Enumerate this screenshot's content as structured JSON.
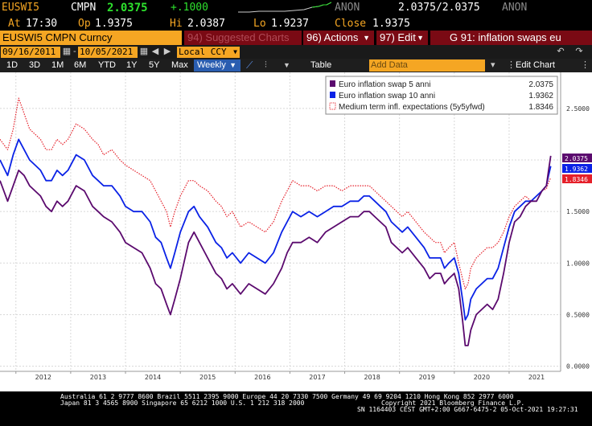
{
  "header": {
    "ticker": "EUSWI5",
    "source": "CMPN",
    "last": "2.0375",
    "change": "+.1000",
    "account": "ANON",
    "bid_ask": "2.0375/2.0375",
    "account2": "ANON",
    "at_label": "At",
    "at_value": "17:30",
    "op_label": "Op",
    "op_value": "1.9375",
    "hi_label": "Hi",
    "hi_value": "2.0387",
    "lo_label": "Lo",
    "lo_value": "1.9237",
    "close_label": "Close",
    "close_value": "1.9375"
  },
  "toolbar": {
    "security_name": "EUSWI5 CMPN Curncy",
    "suggested": "94) Suggested Charts",
    "actions": "96) Actions",
    "edit": "97) Edit",
    "page_title": "G 91: inflation swaps eu",
    "date_from": "09/16/2011",
    "date_to": "10/05/2021",
    "currency": "Local CCY",
    "ranges": [
      "1D",
      "3D",
      "1M",
      "6M",
      "YTD",
      "1Y",
      "5Y",
      "Max"
    ],
    "frequency": "Weekly",
    "table": "Table",
    "add_data": "Add Data",
    "edit_chart": "Edit Chart"
  },
  "chart_data": {
    "type": "line",
    "x_labels": [
      "2012",
      "2013",
      "2014",
      "2015",
      "2016",
      "2017",
      "2018",
      "2019",
      "2020",
      "2021"
    ],
    "y_ticks": [
      "0.0000",
      "0.5000",
      "1.0000",
      "1.5000",
      "2.0000",
      "2.5000"
    ],
    "ylim": [
      -0.05,
      2.85
    ],
    "grid": true,
    "legend_placement": "top-right",
    "series": [
      {
        "name": "Euro inflation swap 5 anni",
        "last_value": "2.0375",
        "color": "#5b0a6e",
        "style": "solid",
        "points": [
          [
            2011.71,
            1.8
          ],
          [
            2011.85,
            1.6
          ],
          [
            2011.95,
            1.75
          ],
          [
            2012.05,
            1.9
          ],
          [
            2012.15,
            1.85
          ],
          [
            2012.25,
            1.75
          ],
          [
            2012.35,
            1.7
          ],
          [
            2012.45,
            1.65
          ],
          [
            2012.55,
            1.55
          ],
          [
            2012.65,
            1.5
          ],
          [
            2012.75,
            1.6
          ],
          [
            2012.85,
            1.55
          ],
          [
            2012.95,
            1.6
          ],
          [
            2013.1,
            1.75
          ],
          [
            2013.25,
            1.7
          ],
          [
            2013.4,
            1.55
          ],
          [
            2013.5,
            1.5
          ],
          [
            2013.6,
            1.45
          ],
          [
            2013.75,
            1.4
          ],
          [
            2013.9,
            1.3
          ],
          [
            2014.0,
            1.2
          ],
          [
            2014.15,
            1.15
          ],
          [
            2014.3,
            1.1
          ],
          [
            2014.45,
            0.95
          ],
          [
            2014.55,
            0.8
          ],
          [
            2014.65,
            0.75
          ],
          [
            2014.75,
            0.6
          ],
          [
            2014.82,
            0.5
          ],
          [
            2014.9,
            0.65
          ],
          [
            2015.0,
            0.85
          ],
          [
            2015.15,
            1.2
          ],
          [
            2015.25,
            1.3
          ],
          [
            2015.35,
            1.2
          ],
          [
            2015.5,
            1.05
          ],
          [
            2015.65,
            0.9
          ],
          [
            2015.75,
            0.85
          ],
          [
            2015.85,
            0.75
          ],
          [
            2015.95,
            0.8
          ],
          [
            2016.1,
            0.7
          ],
          [
            2016.25,
            0.8
          ],
          [
            2016.4,
            0.75
          ],
          [
            2016.55,
            0.7
          ],
          [
            2016.7,
            0.8
          ],
          [
            2016.85,
            0.95
          ],
          [
            2016.95,
            1.1
          ],
          [
            2017.05,
            1.2
          ],
          [
            2017.2,
            1.2
          ],
          [
            2017.35,
            1.25
          ],
          [
            2017.5,
            1.2
          ],
          [
            2017.65,
            1.3
          ],
          [
            2017.8,
            1.35
          ],
          [
            2017.95,
            1.4
          ],
          [
            2018.1,
            1.45
          ],
          [
            2018.25,
            1.45
          ],
          [
            2018.35,
            1.5
          ],
          [
            2018.45,
            1.5
          ],
          [
            2018.55,
            1.45
          ],
          [
            2018.65,
            1.4
          ],
          [
            2018.75,
            1.35
          ],
          [
            2018.85,
            1.2
          ],
          [
            2018.95,
            1.15
          ],
          [
            2019.05,
            1.1
          ],
          [
            2019.15,
            1.15
          ],
          [
            2019.3,
            1.05
          ],
          [
            2019.45,
            0.95
          ],
          [
            2019.55,
            0.85
          ],
          [
            2019.65,
            0.9
          ],
          [
            2019.75,
            0.9
          ],
          [
            2019.82,
            0.8
          ],
          [
            2019.9,
            0.85
          ],
          [
            2020.0,
            0.9
          ],
          [
            2020.08,
            0.75
          ],
          [
            2020.15,
            0.45
          ],
          [
            2020.2,
            0.2
          ],
          [
            2020.25,
            0.2
          ],
          [
            2020.3,
            0.35
          ],
          [
            2020.4,
            0.5
          ],
          [
            2020.5,
            0.55
          ],
          [
            2020.6,
            0.6
          ],
          [
            2020.7,
            0.55
          ],
          [
            2020.8,
            0.65
          ],
          [
            2020.9,
            0.9
          ],
          [
            2021.0,
            1.2
          ],
          [
            2021.1,
            1.4
          ],
          [
            2021.2,
            1.45
          ],
          [
            2021.3,
            1.55
          ],
          [
            2021.4,
            1.6
          ],
          [
            2021.5,
            1.6
          ],
          [
            2021.6,
            1.7
          ],
          [
            2021.68,
            1.75
          ],
          [
            2021.72,
            1.9
          ],
          [
            2021.76,
            2.04
          ]
        ]
      },
      {
        "name": "Euro inflation swap 10 anni",
        "last_value": "1.9362",
        "color": "#0a22e6",
        "style": "solid",
        "points": [
          [
            2011.71,
            2.0
          ],
          [
            2011.85,
            1.85
          ],
          [
            2011.95,
            2.05
          ],
          [
            2012.05,
            2.2
          ],
          [
            2012.15,
            2.1
          ],
          [
            2012.25,
            2.0
          ],
          [
            2012.35,
            1.95
          ],
          [
            2012.45,
            1.9
          ],
          [
            2012.55,
            1.8
          ],
          [
            2012.65,
            1.8
          ],
          [
            2012.75,
            1.9
          ],
          [
            2012.85,
            1.85
          ],
          [
            2012.95,
            1.9
          ],
          [
            2013.1,
            2.05
          ],
          [
            2013.25,
            2.0
          ],
          [
            2013.4,
            1.85
          ],
          [
            2013.5,
            1.8
          ],
          [
            2013.6,
            1.75
          ],
          [
            2013.75,
            1.75
          ],
          [
            2013.9,
            1.65
          ],
          [
            2014.0,
            1.55
          ],
          [
            2014.15,
            1.5
          ],
          [
            2014.3,
            1.5
          ],
          [
            2014.45,
            1.4
          ],
          [
            2014.55,
            1.25
          ],
          [
            2014.65,
            1.2
          ],
          [
            2014.75,
            1.05
          ],
          [
            2014.82,
            0.95
          ],
          [
            2014.9,
            1.1
          ],
          [
            2015.0,
            1.3
          ],
          [
            2015.15,
            1.5
          ],
          [
            2015.25,
            1.55
          ],
          [
            2015.35,
            1.45
          ],
          [
            2015.5,
            1.35
          ],
          [
            2015.65,
            1.2
          ],
          [
            2015.75,
            1.15
          ],
          [
            2015.85,
            1.05
          ],
          [
            2015.95,
            1.1
          ],
          [
            2016.1,
            1.0
          ],
          [
            2016.25,
            1.1
          ],
          [
            2016.4,
            1.05
          ],
          [
            2016.55,
            1.0
          ],
          [
            2016.7,
            1.1
          ],
          [
            2016.85,
            1.3
          ],
          [
            2016.95,
            1.4
          ],
          [
            2017.05,
            1.5
          ],
          [
            2017.2,
            1.45
          ],
          [
            2017.35,
            1.5
          ],
          [
            2017.5,
            1.45
          ],
          [
            2017.65,
            1.5
          ],
          [
            2017.8,
            1.55
          ],
          [
            2017.95,
            1.55
          ],
          [
            2018.1,
            1.6
          ],
          [
            2018.25,
            1.6
          ],
          [
            2018.35,
            1.65
          ],
          [
            2018.45,
            1.65
          ],
          [
            2018.55,
            1.6
          ],
          [
            2018.65,
            1.55
          ],
          [
            2018.75,
            1.5
          ],
          [
            2018.85,
            1.4
          ],
          [
            2018.95,
            1.35
          ],
          [
            2019.05,
            1.3
          ],
          [
            2019.15,
            1.35
          ],
          [
            2019.3,
            1.25
          ],
          [
            2019.45,
            1.15
          ],
          [
            2019.55,
            1.05
          ],
          [
            2019.65,
            1.05
          ],
          [
            2019.75,
            1.05
          ],
          [
            2019.82,
            0.95
          ],
          [
            2019.9,
            1.0
          ],
          [
            2020.0,
            1.05
          ],
          [
            2020.08,
            0.9
          ],
          [
            2020.15,
            0.65
          ],
          [
            2020.2,
            0.45
          ],
          [
            2020.25,
            0.5
          ],
          [
            2020.3,
            0.65
          ],
          [
            2020.4,
            0.75
          ],
          [
            2020.5,
            0.8
          ],
          [
            2020.6,
            0.85
          ],
          [
            2020.7,
            0.85
          ],
          [
            2020.8,
            0.95
          ],
          [
            2020.9,
            1.15
          ],
          [
            2021.0,
            1.35
          ],
          [
            2021.1,
            1.5
          ],
          [
            2021.2,
            1.55
          ],
          [
            2021.3,
            1.6
          ],
          [
            2021.4,
            1.6
          ],
          [
            2021.5,
            1.65
          ],
          [
            2021.6,
            1.7
          ],
          [
            2021.68,
            1.75
          ],
          [
            2021.72,
            1.85
          ],
          [
            2021.76,
            1.94
          ]
        ]
      },
      {
        "name": "Medium term infl. expectations (5y5yfwd)",
        "last_value": "1.8346",
        "color": "#e5202a",
        "style": "dotted",
        "points": [
          [
            2011.71,
            2.2
          ],
          [
            2011.85,
            2.1
          ],
          [
            2011.95,
            2.3
          ],
          [
            2012.05,
            2.6
          ],
          [
            2012.15,
            2.45
          ],
          [
            2012.25,
            2.3
          ],
          [
            2012.35,
            2.25
          ],
          [
            2012.45,
            2.2
          ],
          [
            2012.55,
            2.1
          ],
          [
            2012.65,
            2.1
          ],
          [
            2012.75,
            2.2
          ],
          [
            2012.85,
            2.15
          ],
          [
            2012.95,
            2.2
          ],
          [
            2013.1,
            2.35
          ],
          [
            2013.25,
            2.3
          ],
          [
            2013.4,
            2.2
          ],
          [
            2013.5,
            2.15
          ],
          [
            2013.6,
            2.05
          ],
          [
            2013.75,
            2.1
          ],
          [
            2013.9,
            2.0
          ],
          [
            2014.0,
            1.95
          ],
          [
            2014.15,
            1.9
          ],
          [
            2014.3,
            1.85
          ],
          [
            2014.45,
            1.8
          ],
          [
            2014.55,
            1.7
          ],
          [
            2014.65,
            1.6
          ],
          [
            2014.75,
            1.5
          ],
          [
            2014.82,
            1.35
          ],
          [
            2014.9,
            1.5
          ],
          [
            2015.0,
            1.65
          ],
          [
            2015.15,
            1.8
          ],
          [
            2015.25,
            1.8
          ],
          [
            2015.35,
            1.75
          ],
          [
            2015.5,
            1.7
          ],
          [
            2015.65,
            1.6
          ],
          [
            2015.75,
            1.55
          ],
          [
            2015.85,
            1.45
          ],
          [
            2015.95,
            1.5
          ],
          [
            2016.1,
            1.35
          ],
          [
            2016.25,
            1.4
          ],
          [
            2016.4,
            1.35
          ],
          [
            2016.55,
            1.3
          ],
          [
            2016.7,
            1.4
          ],
          [
            2016.85,
            1.6
          ],
          [
            2016.95,
            1.7
          ],
          [
            2017.05,
            1.8
          ],
          [
            2017.2,
            1.75
          ],
          [
            2017.35,
            1.75
          ],
          [
            2017.5,
            1.7
          ],
          [
            2017.65,
            1.75
          ],
          [
            2017.8,
            1.75
          ],
          [
            2017.95,
            1.7
          ],
          [
            2018.1,
            1.75
          ],
          [
            2018.25,
            1.75
          ],
          [
            2018.35,
            1.75
          ],
          [
            2018.45,
            1.75
          ],
          [
            2018.55,
            1.7
          ],
          [
            2018.65,
            1.65
          ],
          [
            2018.75,
            1.6
          ],
          [
            2018.85,
            1.55
          ],
          [
            2018.95,
            1.5
          ],
          [
            2019.05,
            1.45
          ],
          [
            2019.15,
            1.5
          ],
          [
            2019.3,
            1.4
          ],
          [
            2019.45,
            1.3
          ],
          [
            2019.55,
            1.25
          ],
          [
            2019.65,
            1.2
          ],
          [
            2019.75,
            1.2
          ],
          [
            2019.82,
            1.1
          ],
          [
            2019.9,
            1.15
          ],
          [
            2020.0,
            1.2
          ],
          [
            2020.08,
            1.0
          ],
          [
            2020.15,
            0.85
          ],
          [
            2020.2,
            0.75
          ],
          [
            2020.25,
            0.8
          ],
          [
            2020.3,
            0.95
          ],
          [
            2020.4,
            1.05
          ],
          [
            2020.5,
            1.1
          ],
          [
            2020.6,
            1.15
          ],
          [
            2020.7,
            1.15
          ],
          [
            2020.8,
            1.2
          ],
          [
            2020.9,
            1.3
          ],
          [
            2021.0,
            1.45
          ],
          [
            2021.1,
            1.55
          ],
          [
            2021.2,
            1.6
          ],
          [
            2021.3,
            1.65
          ],
          [
            2021.4,
            1.6
          ],
          [
            2021.5,
            1.65
          ],
          [
            2021.6,
            1.7
          ],
          [
            2021.68,
            1.72
          ],
          [
            2021.72,
            1.78
          ],
          [
            2021.76,
            1.83
          ]
        ]
      }
    ]
  },
  "footer": {
    "line1": "Australia 61 2 9777 8600 Brazil 5511 2395 9000 Europe 44 20 7330 7500 Germany 49 69 9204 1210 Hong Kong 852 2977 6000",
    "line2a": "Japan 81 3 4565 8900        Singapore 65 6212 1000        U.S. 1 212 318 2000",
    "line2b": "Copyright 2021 Bloomberg Finance L.P.",
    "line3": "SN 1164403 CEST  GMT+2:00 G667-6475-2 05-Oct-2021 19:27:31"
  }
}
